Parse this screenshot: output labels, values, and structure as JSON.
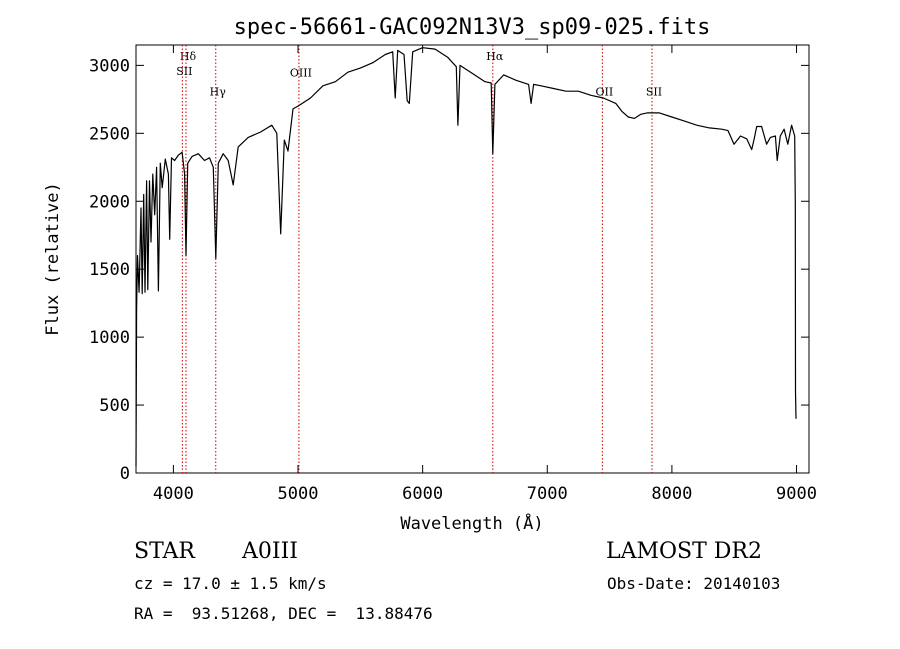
{
  "chart_data": {
    "type": "line",
    "title": "spec-56661-GAC092N13V3_sp09-025.fits",
    "xlabel": "Wavelength (Å)",
    "ylabel": "Flux (relative)",
    "xlim": [
      3700,
      9100
    ],
    "ylim": [
      0,
      3150
    ],
    "xticks": [
      4000,
      5000,
      6000,
      7000,
      8000,
      9000
    ],
    "yticks": [
      0,
      500,
      1000,
      1500,
      2000,
      2500,
      3000
    ],
    "grid": false,
    "series": [
      {
        "color": "#000000",
        "points": [
          [
            3700,
            50
          ],
          [
            3705,
            1200
          ],
          [
            3712,
            1600
          ],
          [
            3725,
            1330
          ],
          [
            3740,
            1950
          ],
          [
            3750,
            1320
          ],
          [
            3762,
            2050
          ],
          [
            3772,
            1330
          ],
          [
            3785,
            2150
          ],
          [
            3795,
            1350
          ],
          [
            3808,
            2150
          ],
          [
            3820,
            1700
          ],
          [
            3835,
            2200
          ],
          [
            3850,
            1900
          ],
          [
            3865,
            2250
          ],
          [
            3880,
            1340
          ],
          [
            3895,
            2280
          ],
          [
            3910,
            2100
          ],
          [
            3935,
            2310
          ],
          [
            3960,
            2200
          ],
          [
            3970,
            1720
          ],
          [
            3985,
            2320
          ],
          [
            4010,
            2300
          ],
          [
            4040,
            2340
          ],
          [
            4070,
            2360
          ],
          [
            4090,
            2200
          ],
          [
            4101,
            1600
          ],
          [
            4115,
            2280
          ],
          [
            4150,
            2330
          ],
          [
            4200,
            2350
          ],
          [
            4250,
            2300
          ],
          [
            4290,
            2320
          ],
          [
            4320,
            2250
          ],
          [
            4340,
            1580
          ],
          [
            4360,
            2280
          ],
          [
            4400,
            2350
          ],
          [
            4440,
            2300
          ],
          [
            4480,
            2120
          ],
          [
            4520,
            2400
          ],
          [
            4600,
            2470
          ],
          [
            4700,
            2510
          ],
          [
            4790,
            2560
          ],
          [
            4830,
            2500
          ],
          [
            4861,
            1760
          ],
          [
            4890,
            2450
          ],
          [
            4920,
            2370
          ],
          [
            4960,
            2680
          ],
          [
            5000,
            2700
          ],
          [
            5100,
            2760
          ],
          [
            5200,
            2850
          ],
          [
            5300,
            2880
          ],
          [
            5400,
            2950
          ],
          [
            5500,
            2980
          ],
          [
            5600,
            3020
          ],
          [
            5700,
            3080
          ],
          [
            5760,
            3100
          ],
          [
            5780,
            2760
          ],
          [
            5800,
            3110
          ],
          [
            5850,
            3080
          ],
          [
            5876,
            2740
          ],
          [
            5893,
            2720
          ],
          [
            5920,
            3100
          ],
          [
            6000,
            3130
          ],
          [
            6100,
            3120
          ],
          [
            6200,
            3060
          ],
          [
            6270,
            2990
          ],
          [
            6283,
            2560
          ],
          [
            6300,
            3000
          ],
          [
            6400,
            2940
          ],
          [
            6500,
            2880
          ],
          [
            6550,
            2870
          ],
          [
            6563,
            2350
          ],
          [
            6580,
            2860
          ],
          [
            6650,
            2930
          ],
          [
            6750,
            2890
          ],
          [
            6850,
            2860
          ],
          [
            6870,
            2720
          ],
          [
            6890,
            2860
          ],
          [
            6950,
            2850
          ],
          [
            7050,
            2830
          ],
          [
            7150,
            2810
          ],
          [
            7250,
            2810
          ],
          [
            7350,
            2780
          ],
          [
            7450,
            2760
          ],
          [
            7550,
            2720
          ],
          [
            7600,
            2660
          ],
          [
            7650,
            2620
          ],
          [
            7700,
            2610
          ],
          [
            7750,
            2640
          ],
          [
            7800,
            2650
          ],
          [
            7900,
            2650
          ],
          [
            8000,
            2620
          ],
          [
            8100,
            2590
          ],
          [
            8200,
            2560
          ],
          [
            8300,
            2540
          ],
          [
            8400,
            2530
          ],
          [
            8450,
            2520
          ],
          [
            8498,
            2420
          ],
          [
            8550,
            2480
          ],
          [
            8600,
            2460
          ],
          [
            8640,
            2380
          ],
          [
            8660,
            2460
          ],
          [
            8680,
            2550
          ],
          [
            8720,
            2550
          ],
          [
            8760,
            2420
          ],
          [
            8790,
            2470
          ],
          [
            8830,
            2480
          ],
          [
            8845,
            2300
          ],
          [
            8870,
            2480
          ],
          [
            8900,
            2530
          ],
          [
            8930,
            2420
          ],
          [
            8960,
            2560
          ],
          [
            8985,
            2480
          ],
          [
            8990,
            1980
          ],
          [
            8992,
            600
          ],
          [
            8996,
            400
          ]
        ]
      }
    ],
    "lines": [
      {
        "label": "Hδ",
        "x": 4101,
        "label_y": 3040
      },
      {
        "label": "SII",
        "x": 4072,
        "label_y": 2930
      },
      {
        "label": "Hγ",
        "x": 4340,
        "label_y": 2780
      },
      {
        "label": "OIII",
        "x": 5007,
        "label_y": 2920
      },
      {
        "label": "Hα",
        "x": 6563,
        "label_y": 3040
      },
      {
        "label": "OII",
        "x": 7442,
        "label_y": 2780
      },
      {
        "label": "SII",
        "x": 7840,
        "label_y": 2780
      }
    ],
    "line_color": "#cc0000"
  },
  "info": {
    "object_class": "STAR",
    "subclass": "A0III",
    "survey": "LAMOST DR2",
    "cz": "cz = 17.0 ± 1.5 km/s",
    "obs_date": "Obs-Date: 20140103",
    "coords": "RA =  93.51268, DEC =  13.88476"
  }
}
